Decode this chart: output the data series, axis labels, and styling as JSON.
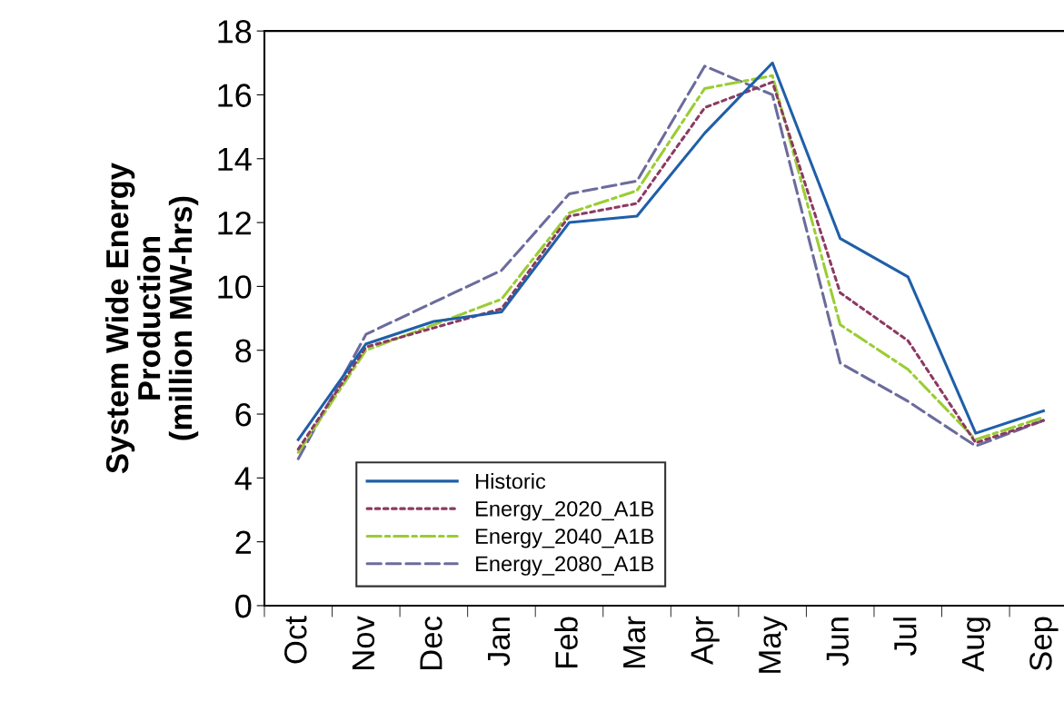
{
  "chart_data": {
    "type": "line",
    "ylabel": "System Wide Energy\nProduction\n(million MW-hrs)",
    "categories": [
      "Oct",
      "Nov",
      "Dec",
      "Jan",
      "Feb",
      "Mar",
      "Apr",
      "May",
      "Jun",
      "Jul",
      "Aug",
      "Sep"
    ],
    "series": [
      {
        "name": "Historic",
        "color": "#1f5fa8",
        "line_style": "solid",
        "values": [
          5.2,
          8.2,
          8.9,
          9.2,
          12.0,
          12.2,
          14.8,
          17.0,
          11.5,
          10.3,
          5.4,
          6.1
        ]
      },
      {
        "name": "Energy_2020_A1B",
        "color": "#8b3a62",
        "line_style": "dotted",
        "values": [
          4.9,
          8.1,
          8.7,
          9.3,
          12.2,
          12.6,
          15.6,
          16.4,
          9.8,
          8.3,
          5.1,
          5.8
        ]
      },
      {
        "name": "Energy_2040_A1B",
        "color": "#9acd32",
        "line_style": "dashdot",
        "values": [
          4.8,
          8.0,
          8.8,
          9.6,
          12.3,
          13.0,
          16.2,
          16.6,
          8.8,
          7.4,
          5.2,
          5.9
        ]
      },
      {
        "name": "Energy_2080_A1B",
        "color": "#6b6b9c",
        "line_style": "dashed",
        "values": [
          4.6,
          8.5,
          9.5,
          10.5,
          12.9,
          13.3,
          16.9,
          16.0,
          7.6,
          6.4,
          5.0,
          5.8
        ]
      }
    ],
    "ylim": [
      0,
      18
    ],
    "yticks": [
      0,
      2,
      4,
      6,
      8,
      10,
      12,
      14,
      16,
      18
    ],
    "grid": false,
    "legend": "bottom left",
    "marker": "none"
  }
}
